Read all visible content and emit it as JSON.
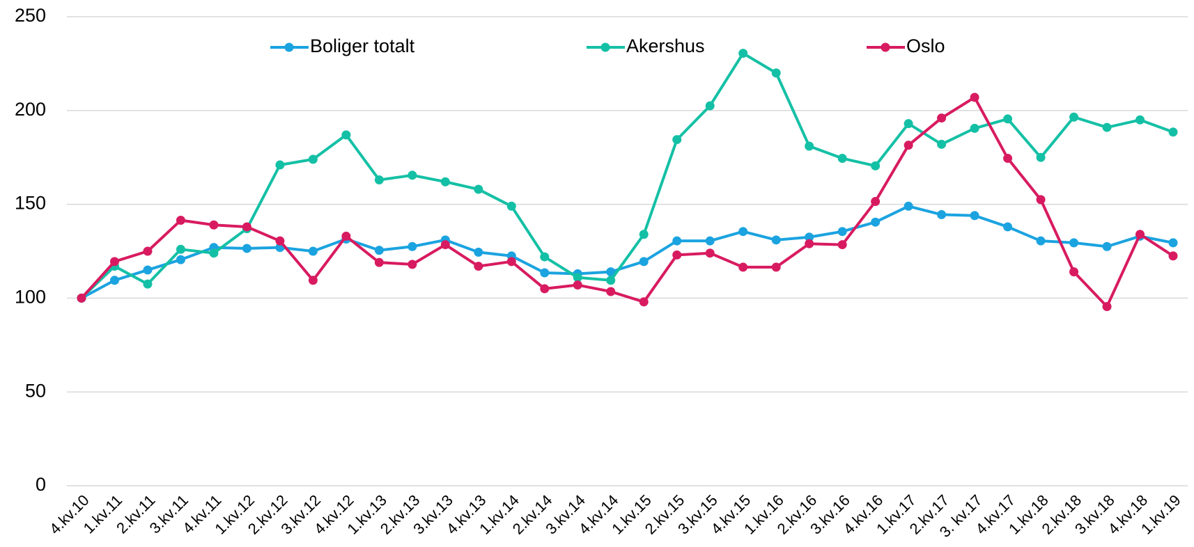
{
  "chart_data": {
    "type": "line",
    "categories": [
      "4.kv.10",
      "1.kv.11",
      "2.kv.11",
      "3.kv.11",
      "4.kv.11",
      "1.kv.12",
      "2.kv.12",
      "3.kv.12",
      "4.kv.12",
      "1.kv.13",
      "2.kv.13",
      "3.kv.13",
      "4.kv.13",
      "1.kv.14",
      "2.kv.14",
      "3.kv.14",
      "4.kv.14",
      "1.kv.15",
      "2.kv.15",
      "3.kv.15",
      "4.kv.15",
      "1.kv.16",
      "2.kv.16",
      "3.kv.16",
      "4.kv.16",
      "1.kv.17",
      "2.kv.17",
      "3. kv.17",
      "4.kv.17",
      "1.kv.18",
      "2.kv.18",
      "3.kv.18",
      "4.kv.18",
      "1.kv.19"
    ],
    "series": [
      {
        "name": "Boliger totalt",
        "color": "#1ba3e0",
        "values": [
          100,
          109.5,
          115,
          120.5,
          127,
          126.5,
          127,
          125,
          131.5,
          125.5,
          127.5,
          131,
          124.5,
          122.5,
          113.5,
          113,
          114,
          119.5,
          130.5,
          130.5,
          135.5,
          131,
          132.5,
          135.5,
          140.5,
          149,
          144.5,
          144,
          138,
          130.5,
          129.5,
          127.5,
          133,
          129.5
        ]
      },
      {
        "name": "Akershus",
        "color": "#14c0a5",
        "values": [
          100,
          117,
          107.5,
          126,
          124,
          137,
          171,
          174,
          187,
          163,
          165.5,
          162,
          158,
          149,
          122,
          111,
          109.5,
          134,
          184.5,
          202.5,
          230.5,
          220,
          181,
          174.5,
          170.5,
          193,
          182,
          190.5,
          195.5,
          175,
          196.5,
          191,
          195,
          188.5
        ]
      },
      {
        "name": "Oslo",
        "color": "#d81b60",
        "values": [
          100,
          119.5,
          125,
          141.5,
          139,
          138,
          130.5,
          109.5,
          133,
          119,
          118,
          128.5,
          117,
          119.5,
          105,
          107,
          103.5,
          98,
          123,
          124,
          116.5,
          116.5,
          129,
          128.5,
          151.5,
          181.5,
          196,
          207,
          174.5,
          152.5,
          114,
          95.5,
          134,
          122.5
        ]
      }
    ],
    "ylim": [
      0,
      250
    ],
    "yticks": [
      0,
      50,
      100,
      150,
      200,
      250
    ],
    "grid": true,
    "legend": "top"
  }
}
